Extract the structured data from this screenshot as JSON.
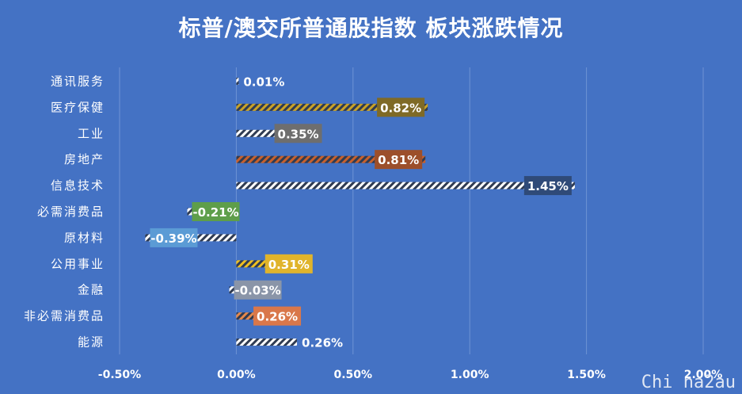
{
  "chart_data": {
    "type": "bar",
    "orientation": "horizontal",
    "title": "标普/澳交所普通股指数 板块涨跌情况",
    "categories": [
      "通讯服务",
      "医疗保健",
      "工业",
      "房地产",
      "信息技术",
      "必需消费品",
      "原材料",
      "公用事业",
      "金融",
      "非必需消费品",
      "能源"
    ],
    "values": [
      0.01,
      0.82,
      0.35,
      0.81,
      1.45,
      -0.21,
      -0.39,
      0.31,
      -0.03,
      0.26,
      0.26
    ],
    "data_labels": [
      "0.01%",
      "0.82%",
      "0.35%",
      "0.81%",
      "1.45%",
      "-0.21%",
      "-0.39%",
      "0.31%",
      "-0.03%",
      "0.26%",
      "0.26%"
    ],
    "label_colors": [
      "",
      "#7f6a26",
      "#6e6e6e",
      "#9c4f2b",
      "",
      "#5e9e4a",
      "#5b9bd5",
      "#e0b42c",
      "#8a95a8",
      "#d9774a",
      ""
    ],
    "bar_stripe_color": "#ffffff",
    "bar_stripe_accents": [
      "#ffffff",
      "#c9a227",
      "#ffffff",
      "#c8602c",
      "#ffffff",
      "#ffffff",
      "#ffffff",
      "#f0c020",
      "#ffffff",
      "#e6884a",
      "#ffffff"
    ],
    "xlim": [
      -0.5,
      2.0
    ],
    "xticks": [
      -0.5,
      0.0,
      0.5,
      1.0,
      1.5,
      2.0
    ],
    "xtick_labels": [
      "-0.50%",
      "0.00%",
      "0.50%",
      "1.00%",
      "1.50%",
      "2.00%"
    ],
    "grid": "vertical",
    "legend": "none",
    "background": "#4472c4",
    "text_color": "#ffffff"
  },
  "watermark": "Chi na2au"
}
